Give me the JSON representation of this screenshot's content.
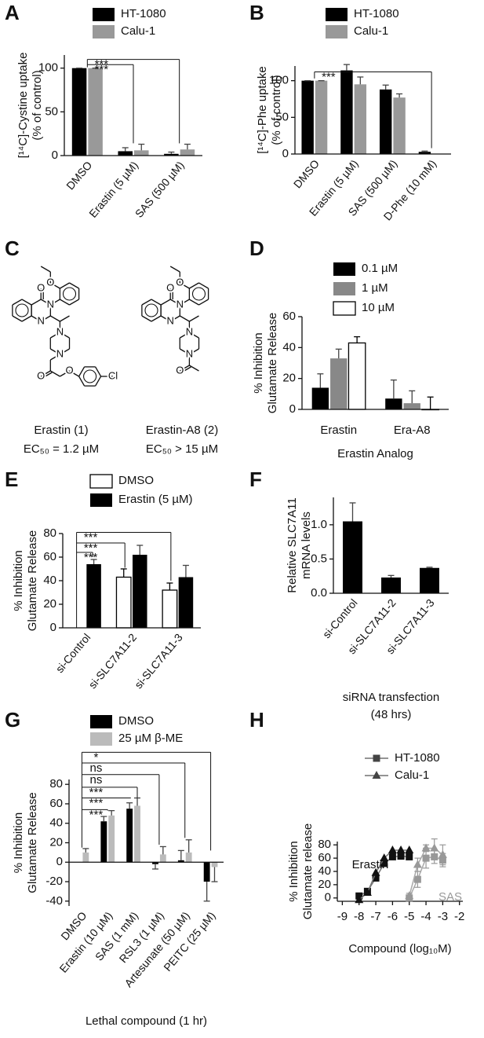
{
  "chart_data": [
    {
      "panel": "A",
      "type": "bar",
      "ylabel": [
        "[¹⁴C]-Cystine uptake",
        "(% of control)"
      ],
      "categories": [
        "DMSO",
        "Erastin (5 µM)",
        "SAS (500 µM)"
      ],
      "series": [
        {
          "name": "HT-1080",
          "color": "#000000",
          "values": [
            100,
            5,
            2
          ],
          "errors": [
            0,
            4,
            2
          ]
        },
        {
          "name": "Calu-1",
          "color": "#999999",
          "values": [
            100,
            6,
            7
          ],
          "errors": [
            0,
            7,
            6
          ]
        }
      ],
      "ylim": [
        0,
        115
      ],
      "yticks": [
        0,
        50,
        100
      ],
      "annotations": [
        "***",
        "***"
      ]
    },
    {
      "panel": "B",
      "type": "bar",
      "ylabel": [
        "[¹⁴C]-Phe uptake",
        "(% of control)"
      ],
      "categories": [
        "DMSO",
        "Erastin (5 µM)",
        "SAS (500 µM)",
        "D-Phe (10 mM)"
      ],
      "series": [
        {
          "name": "HT-1080",
          "color": "#000000",
          "values": [
            100,
            114,
            88,
            3
          ],
          "errors": [
            0,
            8,
            6,
            1
          ]
        },
        {
          "name": "Calu-1",
          "color": "#999999",
          "values": [
            100,
            95,
            77,
            null
          ],
          "errors": [
            0,
            10,
            5,
            null
          ]
        }
      ],
      "ylim": [
        0,
        120
      ],
      "yticks": [
        0,
        50,
        100
      ],
      "annotations": [
        "***"
      ]
    },
    {
      "panel": "D",
      "type": "bar",
      "ylabel": [
        "% Inhibition",
        "Glutamate Release"
      ],
      "xlabel": [
        "Erastin Analog"
      ],
      "categories": [
        "Erastin",
        "Era-A8"
      ],
      "series": [
        {
          "name": "0.1 µM",
          "color": "#000000",
          "values": [
            14,
            7
          ],
          "errors": [
            9,
            12
          ]
        },
        {
          "name": "1 µM",
          "color": "#888888",
          "values": [
            33,
            4
          ],
          "errors": [
            6,
            8
          ]
        },
        {
          "name": "10 µM",
          "color": "#ffffff",
          "values": [
            43,
            0
          ],
          "errors": [
            4,
            8
          ]
        }
      ],
      "ylim": [
        0,
        60
      ],
      "yticks": [
        0,
        20,
        40,
        60
      ]
    },
    {
      "panel": "E",
      "type": "bar",
      "ylabel": [
        "% Inhibition",
        "Glutamate Release"
      ],
      "categories": [
        "si-Control",
        "si-SLC7A11-2",
        "si-SLC7A11-3"
      ],
      "series": [
        {
          "name": "DMSO",
          "color": "#ffffff",
          "values": [
            null,
            43,
            32
          ],
          "errors": [
            null,
            7,
            6
          ]
        },
        {
          "name": "Erastin (5 µM)",
          "color": "#000000",
          "values": [
            54,
            62,
            43
          ],
          "errors": [
            4,
            8,
            10
          ]
        }
      ],
      "ylim": [
        0,
        80
      ],
      "yticks": [
        0,
        20,
        40,
        60,
        80
      ],
      "annotations": [
        "***",
        "***",
        "***"
      ]
    },
    {
      "panel": "F",
      "type": "bar",
      "ylabel": [
        "Relative SLC7A11",
        "mRNA levels"
      ],
      "xlabel": [
        "siRNA transfection",
        "(48 hrs)"
      ],
      "categories": [
        "si-Control",
        "si-SLC7A11-2",
        "si-SLC7A11-3"
      ],
      "color": "#000000",
      "values": [
        1.05,
        0.23,
        0.37
      ],
      "errors": [
        0.27,
        0.03,
        0.01
      ],
      "ylim": [
        0,
        1.4
      ],
      "yticks": [
        {
          "value": 0,
          "label": "0.0"
        },
        {
          "value": 0.5,
          "label": "0.5"
        },
        {
          "value": 1,
          "label": "1.0"
        }
      ]
    },
    {
      "panel": "G",
      "type": "bar",
      "ylabel": [
        "% Inhibition",
        "Glutamate Release"
      ],
      "xlabel": [
        "Lethal compound (1 hr)"
      ],
      "categories": [
        "DMSO",
        "Erastin (10 µM)",
        "SAS (1 mM)",
        "RSL3 (1 µM)",
        "Artesunate (50 µM)",
        "PEITC (25 µM)"
      ],
      "series": [
        {
          "name": "DMSO",
          "color": "#000000",
          "values": [
            null,
            42,
            55,
            -2,
            2,
            -20
          ],
          "errors": [
            null,
            5,
            6,
            5,
            10,
            20
          ]
        },
        {
          "name": "25 µM β-ME",
          "color": "#bbbbbb",
          "values": [
            10,
            48,
            58,
            8,
            10,
            -5
          ],
          "errors": [
            4,
            5,
            8,
            8,
            13,
            15
          ]
        }
      ],
      "ylim": [
        -45,
        85
      ],
      "yticks": [
        -40,
        -20,
        0,
        20,
        40,
        60,
        80
      ],
      "annotations": [
        "***",
        "***",
        "***",
        "ns",
        "ns",
        "*"
      ]
    },
    {
      "panel": "H",
      "type": "line",
      "ylabel": [
        "% Inhibition",
        "Glutamate release"
      ],
      "xlabel": [
        "Compound (log₁₀M)"
      ],
      "xlim": [
        -9.3,
        -1.8
      ],
      "xticks": [
        -9,
        -8,
        -7,
        -6,
        -5,
        -4,
        -3,
        -2
      ],
      "ylim": [
        -5,
        85
      ],
      "yticks": [
        0,
        20,
        40,
        60,
        80
      ],
      "series": [
        {
          "name": "HT-1080",
          "marker": "square"
        },
        {
          "name": "Calu-1",
          "marker": "triangle"
        }
      ],
      "groups": [
        {
          "label": "Erastin",
          "color": "#111111",
          "x": [
            -8,
            -7.5,
            -7,
            -6.5,
            -6,
            -5.5,
            -5
          ],
          "values": [
            [
              3,
              10,
              30,
              52,
              62,
              63,
              62
            ],
            [
              -3,
              8,
              38,
              60,
              72,
              72,
              72
            ]
          ]
        },
        {
          "label": "SAS",
          "color": "#999999",
          "x": [
            -5,
            -4.5,
            -4,
            -3.5,
            -3
          ],
          "values": [
            [
              0,
              28,
              60,
              62,
              57
            ],
            [
              3,
              50,
              75,
              75,
              65
            ]
          ],
          "errors": [
            [
              3,
              12,
              15,
              10,
              10
            ],
            [
              4,
              10,
              5,
              14,
              15
            ]
          ]
        }
      ]
    }
  ],
  "structures": {
    "panel": "C",
    "molecules": [
      {
        "atoms": [
          "O",
          "O",
          "N",
          "N",
          "N",
          "N",
          "O",
          "O",
          "Cl"
        ],
        "name": "Erastin (1)",
        "ec50": "EC₅₀ = 1.2 µM"
      },
      {
        "atoms": [
          "O",
          "O",
          "N",
          "N",
          "N",
          "N",
          "O"
        ],
        "name": "Erastin-A8 (2)",
        "ec50": "EC₅₀ > 15 µM"
      }
    ]
  }
}
